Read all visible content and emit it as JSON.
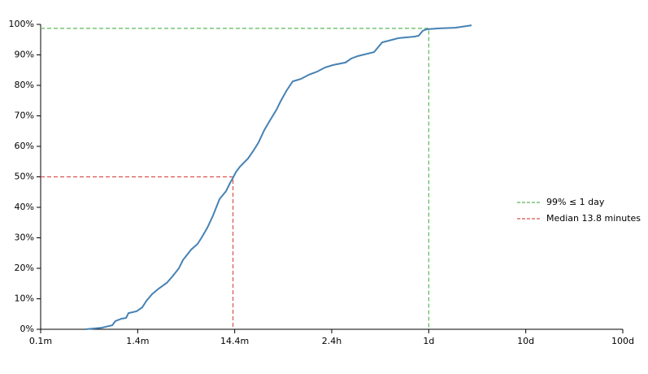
{
  "chart_data": {
    "type": "line",
    "xscale": "log",
    "color": "#4682b4",
    "xlim": [
      0.0001,
      100
    ],
    "xticks": [
      {
        "value": 0.0001,
        "label": "0.1m"
      },
      {
        "value": 0.001,
        "label": "1.4m"
      },
      {
        "value": 0.01,
        "label": "14.4m"
      },
      {
        "value": 0.1,
        "label": "2.4h"
      },
      {
        "value": 1,
        "label": "1d"
      },
      {
        "value": 10,
        "label": "10d"
      },
      {
        "value": 100,
        "label": "100d"
      }
    ],
    "ylim": [
      0,
      100
    ],
    "yticks": [
      {
        "value": 0,
        "label": "0%"
      },
      {
        "value": 10,
        "label": "10%"
      },
      {
        "value": 20,
        "label": "20%"
      },
      {
        "value": 30,
        "label": "30%"
      },
      {
        "value": 40,
        "label": "40%"
      },
      {
        "value": 50,
        "label": "50%"
      },
      {
        "value": 60,
        "label": "60%"
      },
      {
        "value": 70,
        "label": "70%"
      },
      {
        "value": 80,
        "label": "80%"
      },
      {
        "value": 90,
        "label": "90%"
      },
      {
        "value": 100,
        "label": "100%"
      }
    ],
    "x": [
      0.000289,
      0.000425,
      0.000546,
      0.00059,
      0.000689,
      0.000759,
      0.000804,
      0.000975,
      0.001115,
      0.001229,
      0.001406,
      0.00164,
      0.00199,
      0.002278,
      0.002658,
      0.002927,
      0.003551,
      0.004144,
      0.004564,
      0.005222,
      0.005977,
      0.006977,
      0.008143,
      0.008966,
      0.00968,
      0.01026,
      0.0113,
      0.01371,
      0.01569,
      0.01762,
      0.02016,
      0.02308,
      0.02693,
      0.02965,
      0.03395,
      0.03961,
      0.04804,
      0.05826,
      0.07066,
      0.0857,
      0.1039,
      0.1388,
      0.1589,
      0.1854,
      0.2729,
      0.331,
      0.4868,
      0.7161,
      0.788,
      0.868,
      0.956,
      1.277,
      1.878,
      2.763
    ],
    "values": [
      0,
      0.5,
      1.3,
      2.7,
      3.5,
      3.7,
      5.3,
      5.9,
      7.2,
      9.3,
      11.5,
      13.3,
      15.2,
      17.3,
      20,
      22.7,
      26.1,
      28,
      30.1,
      33.3,
      37.3,
      42.7,
      45.3,
      48,
      49.9,
      51.5,
      53.3,
      56,
      58.7,
      61.3,
      65.3,
      68.5,
      72,
      74.7,
      78.1,
      81.3,
      82.1,
      83.5,
      84.5,
      85.9,
      86.7,
      87.5,
      88.8,
      89.6,
      90.9,
      94.1,
      95.5,
      96,
      96.3,
      97.9,
      98.4,
      98.7,
      98.9,
      99.7
    ],
    "reference_lines": [
      {
        "name": "99% ≤ 1 day",
        "color": "#5cb85c",
        "x": 1,
        "y": 98.7
      },
      {
        "name": "Median 13.8 minutes",
        "color": "#d9534f",
        "x": 0.0096,
        "y": 50
      }
    ]
  }
}
